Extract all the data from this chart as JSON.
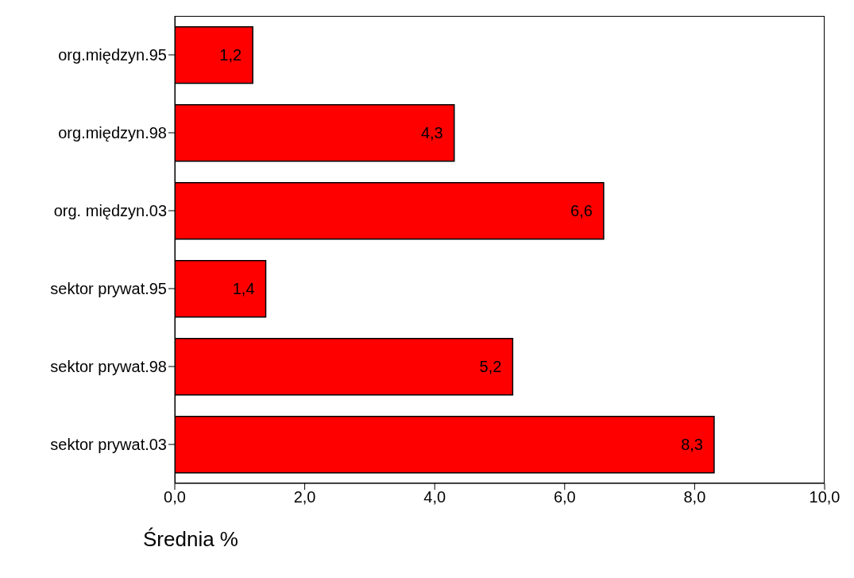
{
  "chart_data": {
    "type": "bar",
    "orientation": "horizontal",
    "categories": [
      "org.międzyn.95",
      "org.międzyn.98",
      "org. międzyn.03",
      "sektor prywat.95",
      "sektor prywat.98",
      "sektor prywat.03"
    ],
    "values": [
      1.2,
      4.3,
      6.6,
      1.4,
      5.2,
      8.3
    ],
    "value_labels": [
      "1,2",
      "4,3",
      "6,6",
      "1,4",
      "5,2",
      "8,3"
    ],
    "color": "#ff0000",
    "xlabel": "Średnia %",
    "xlim": [
      0,
      10
    ],
    "xticks": [
      {
        "value": 0,
        "label": "0,0"
      },
      {
        "value": 2,
        "label": "2,0"
      },
      {
        "value": 4,
        "label": "4,0"
      },
      {
        "value": 6,
        "label": "6,0"
      },
      {
        "value": 8,
        "label": "8,0"
      },
      {
        "value": 10,
        "label": "10,0"
      }
    ],
    "grid": false
  }
}
